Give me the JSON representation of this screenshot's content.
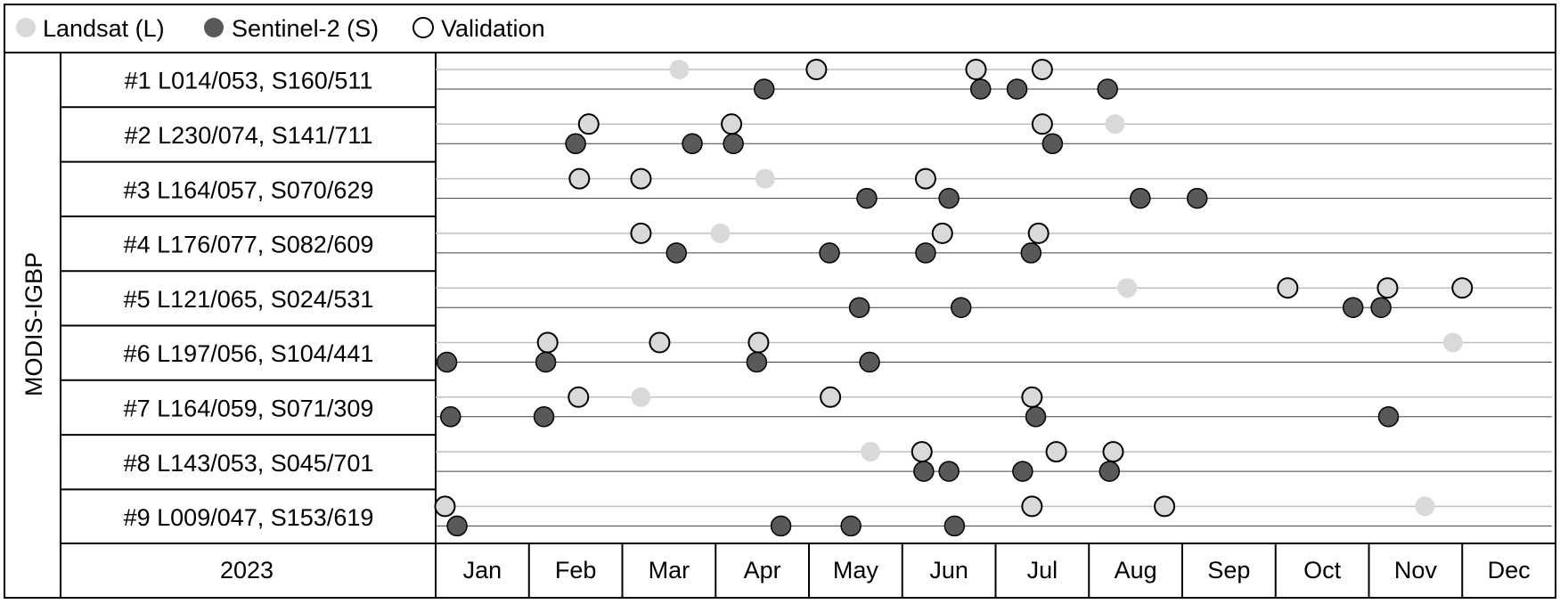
{
  "chart_data": {
    "type": "scatter",
    "year": "2023",
    "ylabel": "MODIS-IGBP",
    "months": [
      "Jan",
      "Feb",
      "Mar",
      "Apr",
      "May",
      "Jun",
      "Jul",
      "Aug",
      "Sep",
      "Oct",
      "Nov",
      "Dec"
    ],
    "legend": [
      {
        "key": "landsat",
        "label": "Landsat (L)"
      },
      {
        "key": "sentinel",
        "label": "Sentinel-2 (S)"
      },
      {
        "key": "validation",
        "label": "Validation"
      }
    ],
    "colors": {
      "landsat": "#d9d9d9",
      "sentinel": "#595959",
      "validation_fill": "#d9d9d9",
      "validation_stroke": "#000000",
      "grid_light": "#bfbfbf",
      "grid_dark": "#404040"
    },
    "x_unit": "month (1.0 = start of Jan)",
    "sites": [
      {
        "label": "#1 L014/053, S160/511",
        "landsat": [
          3.61
        ],
        "sentinel": [
          4.52,
          6.84,
          7.23,
          8.2
        ],
        "validation": [
          5.08,
          6.79,
          7.5
        ]
      },
      {
        "label": "#2 L230/074, S141/711",
        "landsat": [
          8.28
        ],
        "sentinel": [
          2.5,
          3.75,
          4.19,
          7.61
        ],
        "validation": [
          2.64,
          4.17,
          7.5
        ]
      },
      {
        "label": "#3 L164/057, S070/629",
        "landsat": [
          4.53
        ],
        "sentinel": [
          5.62,
          6.5,
          8.55,
          9.16
        ],
        "validation": [
          2.54,
          3.2,
          6.25
        ]
      },
      {
        "label": "#4 L176/077, S082/609",
        "landsat": [
          4.05
        ],
        "sentinel": [
          3.58,
          5.22,
          6.25,
          7.38
        ],
        "validation": [
          3.2,
          6.43,
          7.46
        ]
      },
      {
        "label": "#5 L121/065, S024/531",
        "landsat": [
          8.41
        ],
        "sentinel": [
          5.54,
          6.63,
          10.83,
          11.13
        ],
        "validation": [
          10.13,
          11.2,
          12.0
        ]
      },
      {
        "label": "#6 L197/056, S104/441",
        "landsat": [
          11.9
        ],
        "sentinel": [
          1.12,
          2.18,
          4.44,
          5.65
        ],
        "validation": [
          2.2,
          3.4,
          4.46
        ]
      },
      {
        "label": "#7 L164/059, S071/309",
        "landsat": [
          3.2
        ],
        "sentinel": [
          1.16,
          2.16,
          7.43,
          11.21
        ],
        "validation": [
          2.53,
          5.23,
          7.39
        ]
      },
      {
        "label": "#8 L143/053, S045/701",
        "landsat": [
          5.66
        ],
        "sentinel": [
          6.23,
          6.5,
          7.29,
          8.22
        ],
        "validation": [
          6.21,
          7.65,
          8.26
        ]
      },
      {
        "label": "#9 L009/047, S153/619",
        "landsat": [
          11.6
        ],
        "sentinel": [
          1.23,
          4.7,
          5.45,
          6.56
        ],
        "validation": [
          1.1,
          7.39,
          8.81
        ]
      }
    ]
  }
}
